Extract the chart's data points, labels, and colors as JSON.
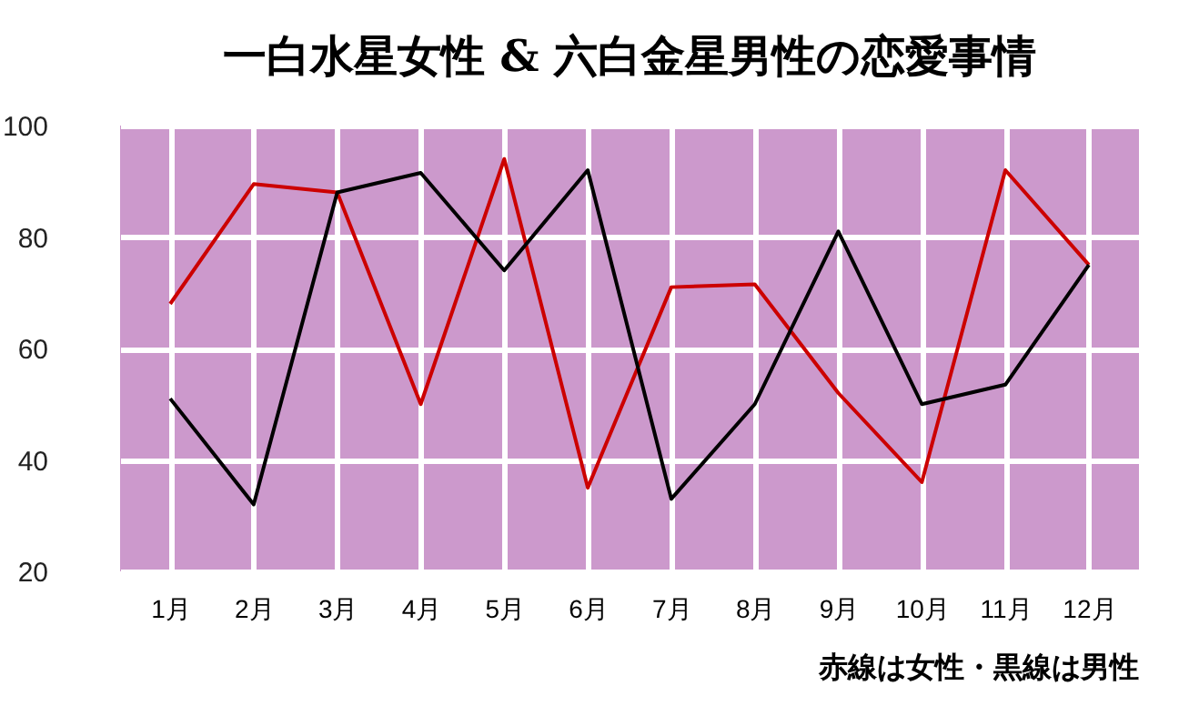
{
  "chart_data": {
    "type": "line",
    "title": "一白水星女性 & 六白金星男性の恋愛事情",
    "categories": [
      "1月",
      "2月",
      "3月",
      "4月",
      "5月",
      "6月",
      "7月",
      "8月",
      "9月",
      "10月",
      "11月",
      "12月"
    ],
    "series": [
      {
        "color": "#cc0000",
        "values": [
          68,
          89.5,
          88,
          50,
          94,
          35,
          71,
          71.5,
          52,
          36,
          92,
          75
        ]
      },
      {
        "color": "#000000",
        "values": [
          51,
          32,
          88,
          91.5,
          74,
          92,
          33,
          50,
          81,
          50,
          53.5,
          75
        ]
      }
    ],
    "ylim": [
      20,
      100
    ],
    "yticks": [
      20,
      40,
      60,
      80,
      100
    ],
    "grid": true,
    "annotations": [
      "赤線は女性・黒線は男性"
    ]
  }
}
